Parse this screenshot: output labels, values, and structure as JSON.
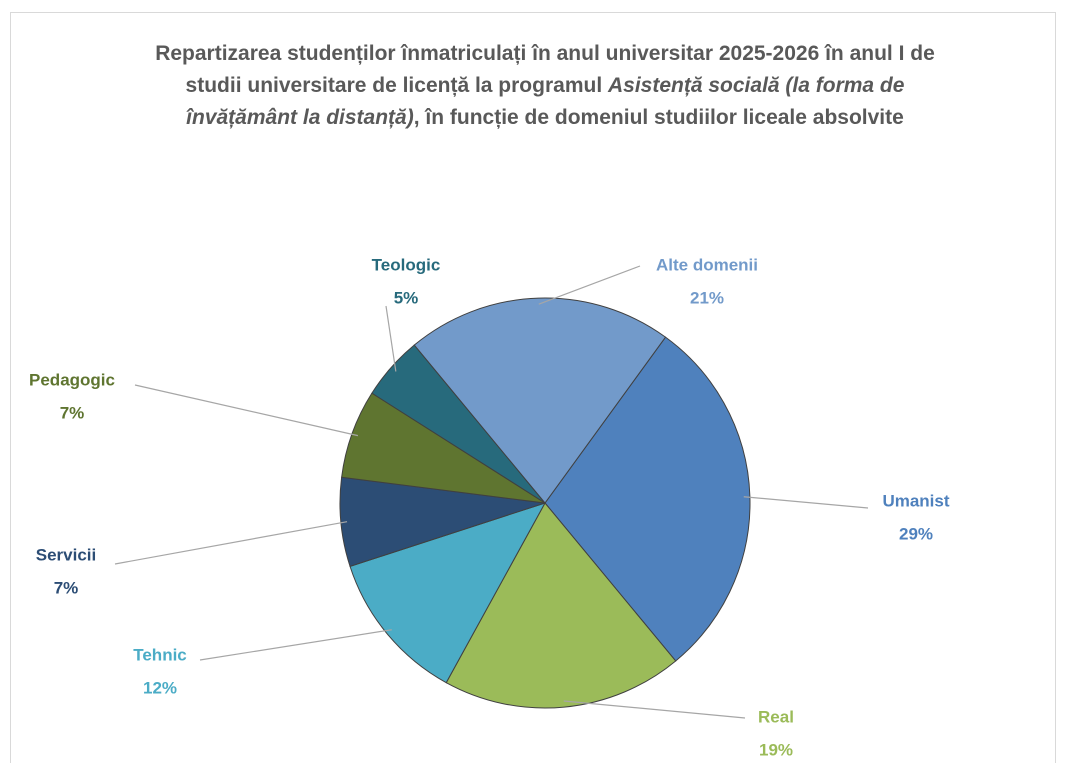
{
  "chart_data": {
    "type": "pie",
    "title": [
      "Repartizarea studenților înmatriculați în anul universitar 2025-2026 în anul I de studii universitare de licență la programul",
      "Asistență socială (la forma de învățământ la distanță)",
      ", în funcție de domeniul studiilor liceale absolvite"
    ],
    "categories": [
      "Umanist",
      "Real",
      "Tehnic",
      "Servicii",
      "Pedagogic",
      "Teologic",
      "Alte domenii"
    ],
    "values": [
      29,
      19,
      12,
      7,
      7,
      5,
      21
    ],
    "value_labels": [
      "29%",
      "19%",
      "12%",
      "7%",
      "7%",
      "5%",
      "21%"
    ],
    "colors": [
      "#4f81bd",
      "#9bbb59",
      "#4bacc6",
      "#2c4d75",
      "#5f7530",
      "#276a7c",
      "#729aca"
    ]
  }
}
